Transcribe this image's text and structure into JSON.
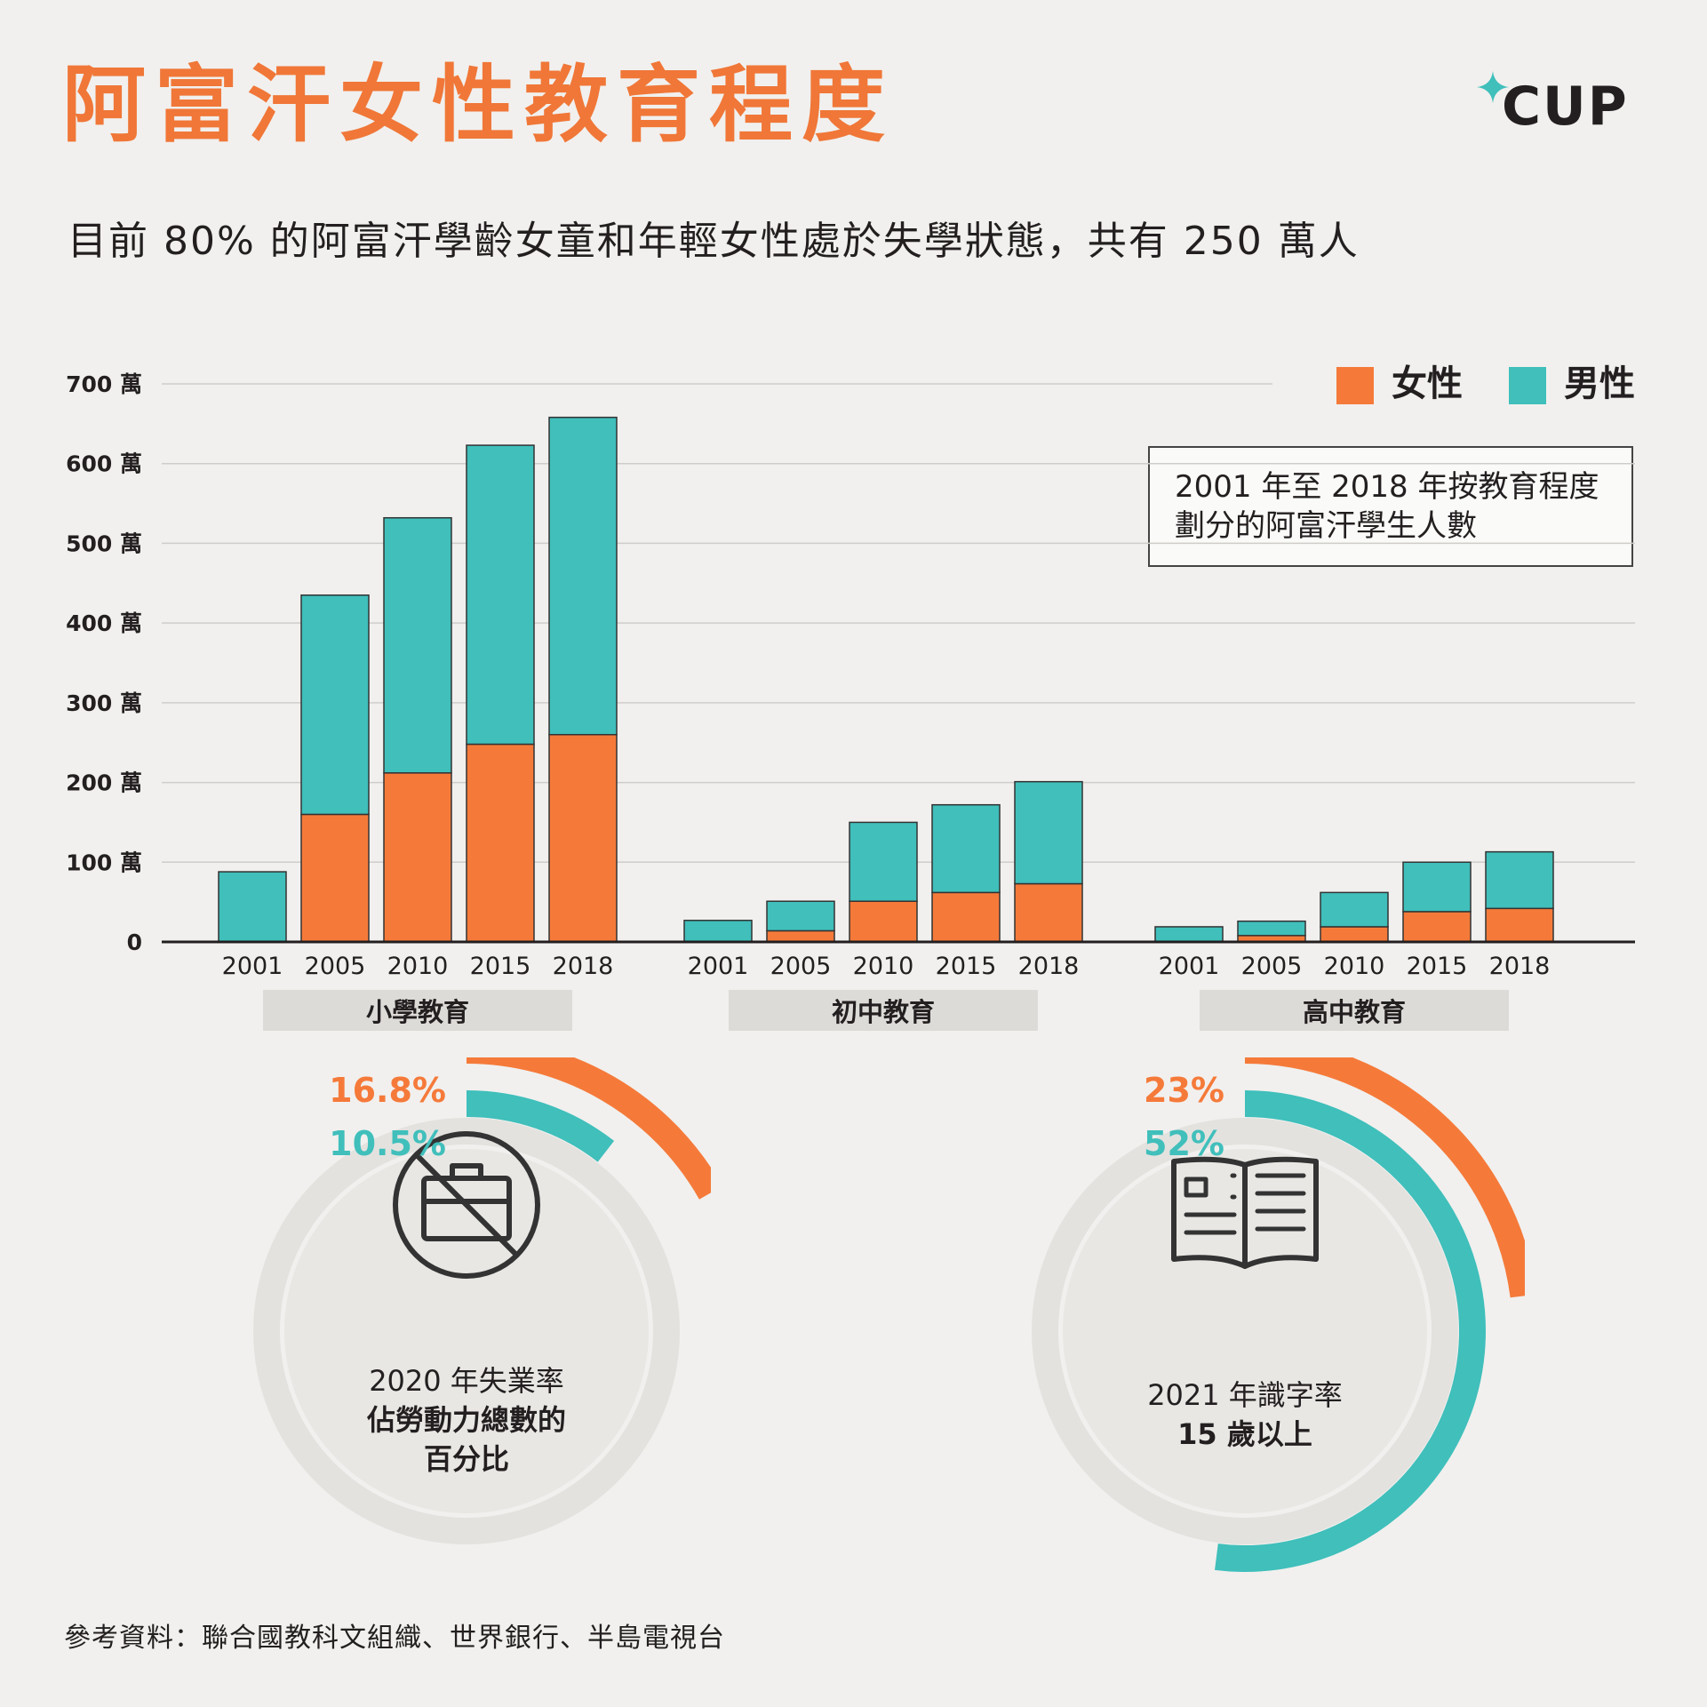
{
  "header": {
    "title": "阿富汗女性教育程度",
    "subtitle": "目前 80% 的阿富汗學齡女童和年輕女性處於失學狀態，共有 250 萬人",
    "logo": "CUP"
  },
  "colors": {
    "female": "#f57a3a",
    "male": "#40bfbb",
    "track": "#e3e2df",
    "inner": "#e8e7e4"
  },
  "legend": {
    "female": "女性",
    "male": "男性"
  },
  "note": {
    "line1": "2001 年至 2018 年按教育程度",
    "line2": "劃分的阿富汗學生人數"
  },
  "chart_data": {
    "type": "bar",
    "stacked": true,
    "title": "2001 年至 2018 年按教育程度劃分的阿富汗學生人數",
    "ylim": [
      0,
      700
    ],
    "yticks": [
      "0",
      "100 萬",
      "200 萬",
      "300 萬",
      "400 萬",
      "500 萬",
      "600 萬",
      "700 萬"
    ],
    "grid": true,
    "legend_position": "top-right",
    "groups": [
      {
        "name": "小學教育",
        "categories": [
          "2001",
          "2005",
          "2010",
          "2015",
          "2018"
        ],
        "series": [
          {
            "name": "女性",
            "values": [
              0,
              160,
              212,
              248,
              260
            ]
          },
          {
            "name": "男性",
            "values": [
              88,
              275,
              320,
              375,
              398
            ]
          }
        ]
      },
      {
        "name": "初中教育",
        "categories": [
          "2001",
          "2005",
          "2010",
          "2015",
          "2018"
        ],
        "series": [
          {
            "name": "女性",
            "values": [
              0,
              14,
              51,
              62,
              73
            ]
          },
          {
            "name": "男性",
            "values": [
              27,
              37,
              99,
              110,
              128
            ]
          }
        ]
      },
      {
        "name": "高中教育",
        "categories": [
          "2001",
          "2005",
          "2010",
          "2015",
          "2018"
        ],
        "series": [
          {
            "name": "女性",
            "values": [
              0,
              8,
              19,
              38,
              42
            ]
          },
          {
            "name": "男性",
            "values": [
              19,
              18,
              43,
              62,
              71
            ]
          }
        ]
      }
    ]
  },
  "donuts": [
    {
      "female_pct": "16.8%",
      "male_pct": "10.5%",
      "female_value": 16.8,
      "male_value": 10.5,
      "icon": "no-job-briefcase-icon",
      "line1": "2020 年失業率",
      "line2": "佔勞動力總數的",
      "line3": "百分比"
    },
    {
      "female_pct": "23%",
      "male_pct": "52%",
      "female_value": 23,
      "male_value": 52,
      "icon": "open-book-icon",
      "line1": "2021 年識字率",
      "line2": "15 歲以上",
      "line3": ""
    }
  ],
  "source": "參考資料：聯合國教科文組織、世界銀行、半島電視台"
}
